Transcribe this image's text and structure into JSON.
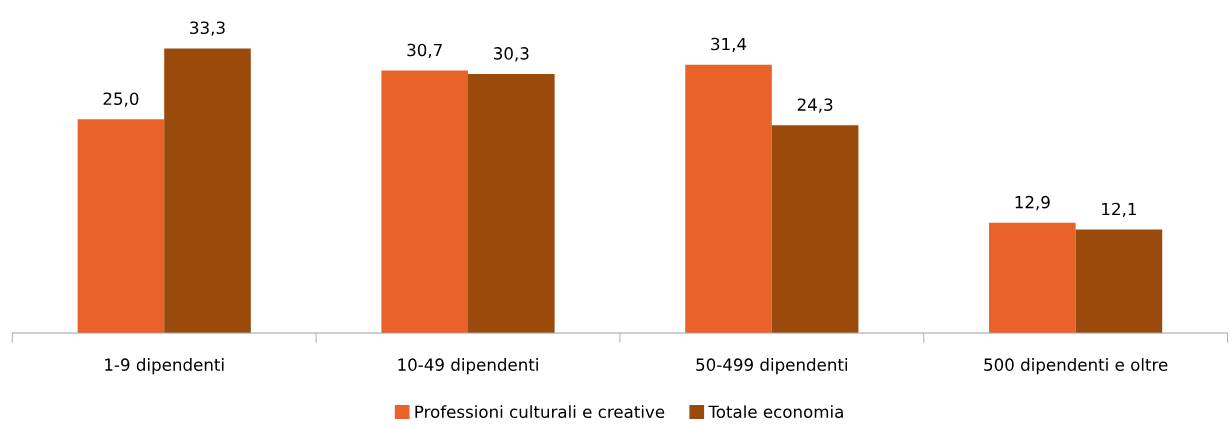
{
  "chart_data": {
    "type": "bar",
    "categories": [
      "1-9 dipendenti",
      "10-49 dipendenti",
      "50-499 dipendenti",
      "500 dipendenti e oltre"
    ],
    "series": [
      {
        "name": "Professioni culturali e creative",
        "color": "#e8622a",
        "values": [
          25.0,
          30.7,
          31.4,
          12.9
        ],
        "value_labels": [
          "25,0",
          "30,7",
          "31,4",
          "12,9"
        ]
      },
      {
        "name": "Totale economia",
        "color": "#9a4a0a",
        "values": [
          33.3,
          30.3,
          24.3,
          12.1
        ],
        "value_labels": [
          "33,3",
          "30,3",
          "24,3",
          "12,1"
        ]
      }
    ],
    "grid": false,
    "legend": "bottom"
  }
}
